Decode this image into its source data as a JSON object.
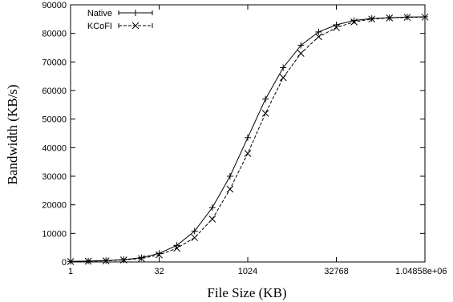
{
  "chart_data": {
    "type": "line",
    "title": "",
    "xlabel": "File Size (KB)",
    "ylabel": "Bandwidth (KB/s)",
    "xscale": "log2",
    "xlim": [
      1,
      1048576
    ],
    "ylim": [
      0,
      90000
    ],
    "x_ticks": [
      1,
      32,
      1024,
      32768,
      1048576
    ],
    "x_tick_labels": [
      "1",
      "32",
      "1024",
      "32768",
      "1.04858e+06"
    ],
    "y_ticks": [
      0,
      10000,
      20000,
      30000,
      40000,
      50000,
      60000,
      70000,
      80000,
      90000
    ],
    "y_tick_labels": [
      "0",
      "10000",
      "20000",
      "30000",
      "40000",
      "50000",
      "60000",
      "70000",
      "80000",
      "90000"
    ],
    "grid": false,
    "legend_position": "top-left",
    "x": [
      1,
      2,
      4,
      8,
      16,
      32,
      64,
      128,
      256,
      512,
      1024,
      2048,
      4096,
      8192,
      16384,
      32768,
      65536,
      131072,
      262144,
      524288,
      1048576
    ],
    "series": [
      {
        "name": "Native",
        "marker": "plus",
        "line_style": "solid",
        "values": [
          200,
          300,
          500,
          800,
          1500,
          3000,
          5800,
          10800,
          19000,
          30000,
          43500,
          57000,
          68000,
          75800,
          80500,
          83000,
          84500,
          85200,
          85500,
          85700,
          85800
        ]
      },
      {
        "name": "KCoFI",
        "marker": "cross",
        "line_style": "dashed",
        "values": [
          150,
          250,
          400,
          700,
          1200,
          2500,
          4800,
          8500,
          15000,
          25500,
          38000,
          52000,
          64500,
          73000,
          78800,
          82000,
          84000,
          85000,
          85400,
          85600,
          85700
        ]
      }
    ]
  }
}
